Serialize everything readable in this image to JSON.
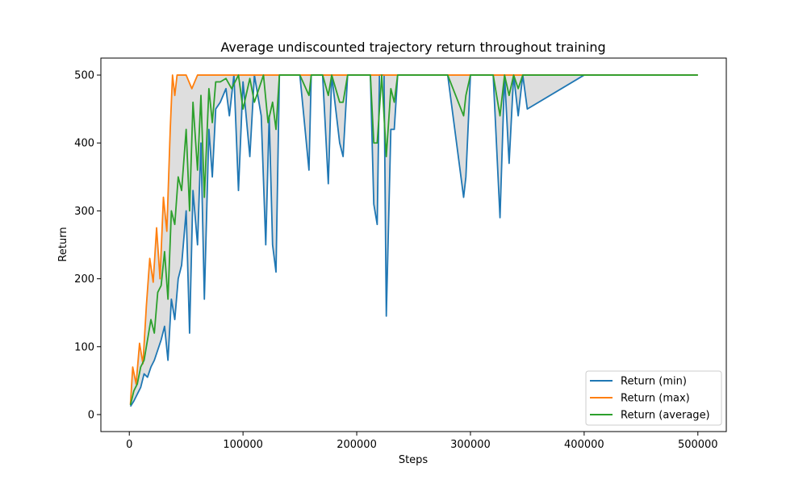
{
  "chart_data": {
    "type": "line",
    "title": "Average undiscounted trajectory return throughout training",
    "xlabel": "Steps",
    "ylabel": "Return",
    "xlim": [
      -25000,
      525000
    ],
    "ylim": [
      -25,
      525
    ],
    "x_ticks": [
      0,
      100000,
      200000,
      300000,
      400000,
      500000
    ],
    "x_tick_labels": [
      "0",
      "100000",
      "200000",
      "300000",
      "400000",
      "500000"
    ],
    "y_ticks": [
      0,
      100,
      200,
      300,
      400,
      500
    ],
    "y_tick_labels": [
      "0",
      "100",
      "200",
      "300",
      "400",
      "500"
    ],
    "grid": false,
    "legend_position": "bottom-right",
    "band": {
      "between": [
        "Return (min)",
        "Return (max)"
      ],
      "color": "#d3d3d3"
    },
    "series": [
      {
        "name": "Return (min)",
        "color": "#1f77b4",
        "x": [
          1000,
          4000,
          7000,
          10000,
          13000,
          16000,
          19000,
          22000,
          25000,
          28000,
          31000,
          34000,
          37000,
          40000,
          43000,
          46000,
          50000,
          53000,
          56000,
          60000,
          63000,
          66000,
          70000,
          73000,
          76000,
          80000,
          85000,
          88000,
          92000,
          96000,
          100000,
          106000,
          110000,
          116000,
          120000,
          123000,
          126000,
          129000,
          132000,
          140000,
          150000,
          158000,
          160000,
          170000,
          175000,
          178000,
          185000,
          188000,
          192000,
          200000,
          212000,
          215000,
          218000,
          220000,
          224000,
          226000,
          230000,
          233000,
          236000,
          240000,
          260000,
          280000,
          294000,
          296000,
          300000,
          320000,
          326000,
          330000,
          334000,
          338000,
          342000,
          346000,
          350000,
          400000,
          450000,
          500000
        ],
        "values": [
          12,
          20,
          30,
          40,
          60,
          55,
          70,
          80,
          95,
          110,
          130,
          80,
          170,
          140,
          200,
          220,
          300,
          120,
          330,
          250,
          400,
          170,
          420,
          350,
          450,
          460,
          480,
          440,
          500,
          330,
          490,
          380,
          500,
          440,
          250,
          440,
          250,
          210,
          500,
          500,
          500,
          360,
          500,
          500,
          340,
          500,
          400,
          380,
          500,
          500,
          500,
          310,
          280,
          500,
          500,
          145,
          420,
          420,
          500,
          500,
          500,
          500,
          320,
          350,
          500,
          500,
          290,
          500,
          370,
          500,
          440,
          500,
          450,
          500,
          500,
          500
        ]
      },
      {
        "name": "Return (max)",
        "color": "#ff7f0e",
        "x": [
          1000,
          3000,
          6000,
          9000,
          12000,
          15000,
          18000,
          21000,
          24000,
          27000,
          30000,
          33000,
          36000,
          38000,
          40000,
          42000,
          45000,
          50000,
          55000,
          60000,
          70000,
          80000,
          100000,
          120000,
          130000,
          160000,
          200000,
          230000,
          300000,
          400000,
          500000
        ],
        "values": [
          15,
          70,
          45,
          105,
          75,
          160,
          230,
          195,
          275,
          200,
          320,
          270,
          420,
          500,
          470,
          500,
          500,
          500,
          480,
          500,
          500,
          500,
          500,
          500,
          500,
          500,
          500,
          500,
          500,
          500,
          500
        ]
      },
      {
        "name": "Return (average)",
        "color": "#2ca02c",
        "x": [
          1000,
          4000,
          7000,
          10000,
          13000,
          16000,
          19000,
          22000,
          25000,
          28000,
          31000,
          34000,
          37000,
          40000,
          43000,
          46000,
          50000,
          53000,
          56000,
          60000,
          63000,
          66000,
          70000,
          73000,
          76000,
          80000,
          85000,
          90000,
          96000,
          100000,
          106000,
          110000,
          118000,
          122000,
          126000,
          129000,
          132000,
          140000,
          150000,
          158000,
          160000,
          170000,
          175000,
          178000,
          185000,
          188000,
          192000,
          200000,
          212000,
          215000,
          218000,
          222000,
          226000,
          230000,
          233000,
          236000,
          240000,
          260000,
          280000,
          294000,
          296000,
          300000,
          320000,
          326000,
          330000,
          334000,
          338000,
          342000,
          346000,
          350000,
          400000,
          450000,
          500000
        ],
        "values": [
          14,
          35,
          45,
          70,
          80,
          110,
          140,
          120,
          180,
          190,
          240,
          170,
          300,
          280,
          350,
          330,
          420,
          300,
          460,
          360,
          470,
          320,
          480,
          430,
          490,
          490,
          495,
          480,
          500,
          450,
          495,
          460,
          500,
          430,
          460,
          420,
          500,
          500,
          500,
          470,
          500,
          500,
          470,
          500,
          460,
          460,
          500,
          500,
          500,
          400,
          400,
          500,
          380,
          480,
          460,
          500,
          500,
          500,
          500,
          440,
          470,
          500,
          500,
          440,
          500,
          470,
          500,
          480,
          500,
          500,
          500,
          500,
          500
        ]
      }
    ]
  }
}
